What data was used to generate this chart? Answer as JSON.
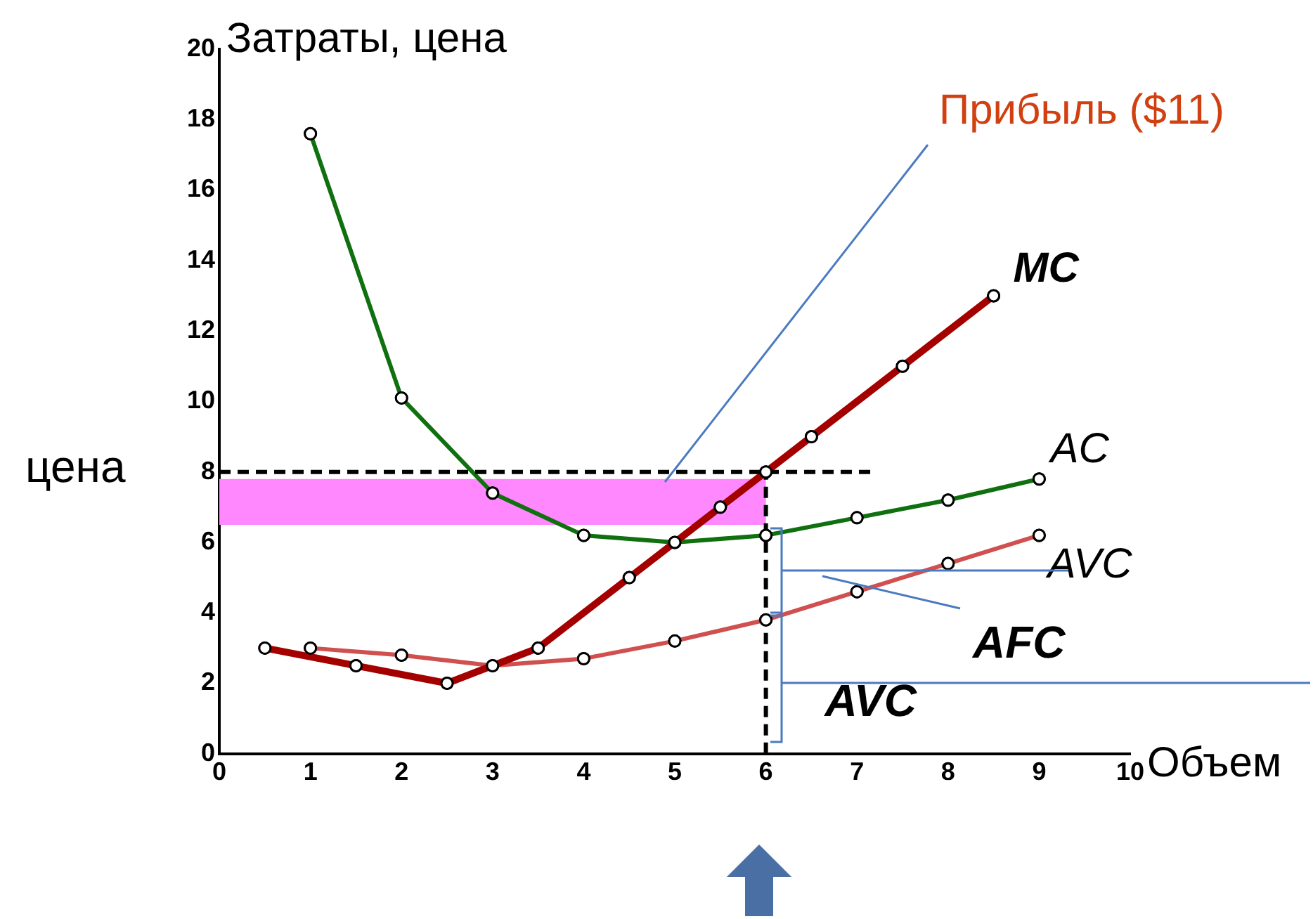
{
  "chart_data": {
    "type": "line",
    "ylabel": "Затраты, цена",
    "xlabel": "Объем",
    "xlim": [
      0,
      10
    ],
    "xticks": [
      0,
      1,
      2,
      3,
      4,
      5,
      6,
      7,
      8,
      9,
      10
    ],
    "ylim": [
      0,
      20
    ],
    "yticks": [
      0,
      2,
      4,
      6,
      8,
      10,
      12,
      14,
      16,
      18,
      20
    ],
    "grid": false,
    "legend": false,
    "marker": "circle",
    "series": [
      {
        "name": "MC",
        "color": "#a50000",
        "x": [
          0.5,
          1.5,
          2.5,
          3.5,
          4.5,
          5.5,
          6,
          6.5,
          7.5,
          8.5
        ],
        "values": [
          3,
          2.5,
          2,
          3,
          5,
          7,
          8,
          9,
          11,
          13
        ]
      },
      {
        "name": "AC",
        "color": "#107010",
        "x": [
          1,
          2,
          3,
          4,
          5,
          6,
          7,
          8,
          9
        ],
        "values": [
          17.6,
          10.1,
          7.4,
          6.2,
          6,
          6.2,
          6.7,
          7.2,
          7.8
        ]
      },
      {
        "name": "AVC",
        "color": "#d05050",
        "x": [
          1,
          2,
          3,
          4,
          5,
          6,
          7,
          8,
          9
        ],
        "values": [
          3,
          2.8,
          2.5,
          2.7,
          3.2,
          3.8,
          4.6,
          5.4,
          6.2
        ]
      }
    ],
    "ref_lines": [
      {
        "axis": "y",
        "value": 8,
        "line_style": "dashed"
      },
      {
        "axis": "x",
        "value": 6,
        "line_style": "dashed"
      }
    ],
    "bands": [
      {
        "axis": "y",
        "from": 6.5,
        "to": 7.8,
        "color": "#ff88ff"
      }
    ],
    "annotations": [
      "Прибыль ($11)",
      "цена",
      "AFC",
      {
        "text": "AVC",
        "x": 6,
        "y": 1.9
      }
    ]
  }
}
